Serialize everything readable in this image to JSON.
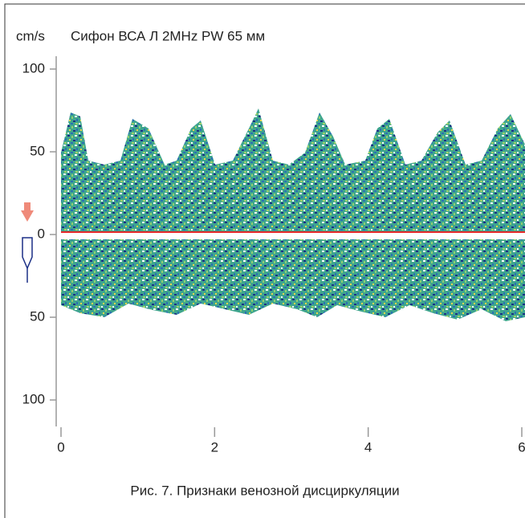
{
  "chart_data": {
    "type": "spectrogram",
    "y_unit": "cm/s",
    "title": "Сифон ВСА Л  2MHz PW  65 мм",
    "caption": "Рис. 7. Признаки венозной дисциркуляции",
    "xlim": [
      0,
      6
    ],
    "xticks": [
      0,
      2,
      4,
      6
    ],
    "ylim": [
      -116,
      108
    ],
    "yticks": [
      {
        "value": 100,
        "label": "100"
      },
      50,
      0,
      {
        "value": -50,
        "label": "50"
      },
      {
        "value": -100,
        "label": "100"
      }
    ]
  }
}
